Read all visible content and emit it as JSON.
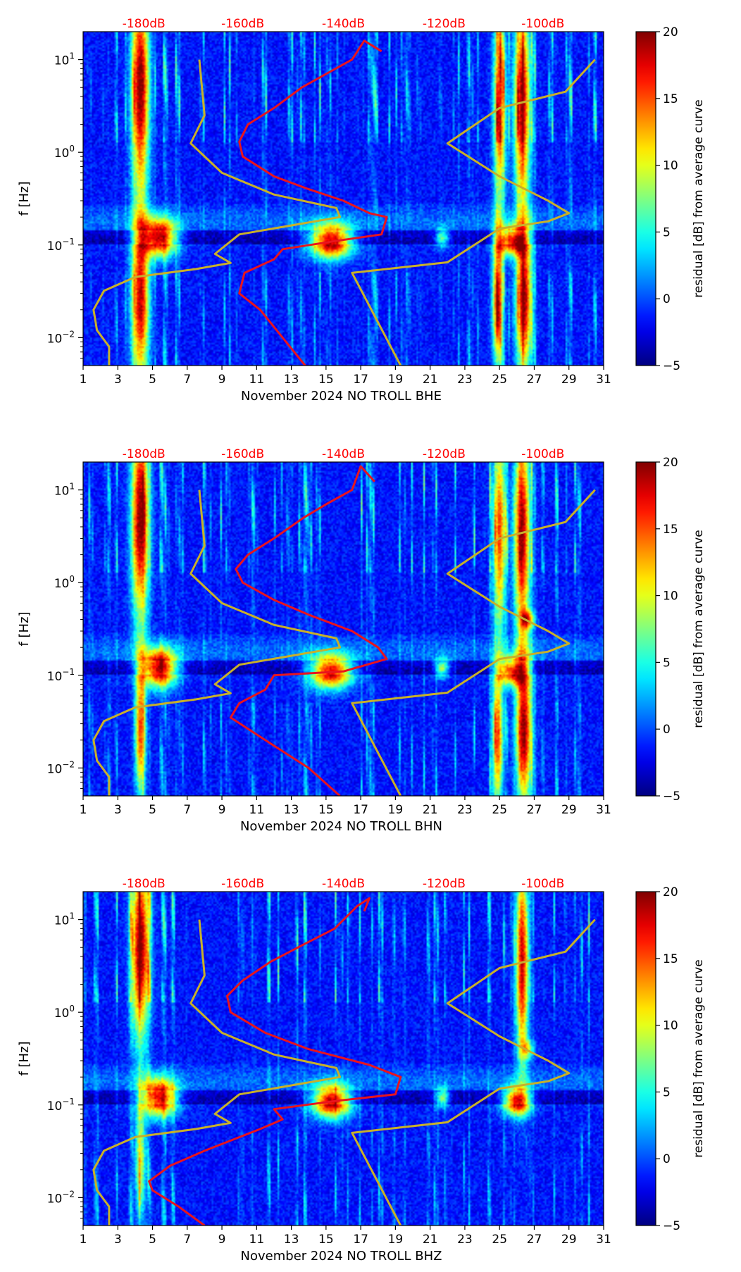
{
  "colors": {
    "db_label": "#ff0000",
    "red_curve": "#e8141e",
    "yellow_curve": "#c8b02a",
    "axis": "#000000"
  },
  "chart_data": [
    {
      "type": "heatmap",
      "title": "",
      "xlabel": "November 2024 NO TROLL  BHE",
      "ylabel": "f [Hz]",
      "x_range": [
        1,
        31
      ],
      "x_ticks": [
        "1",
        "3",
        "5",
        "7",
        "9",
        "11",
        "13",
        "15",
        "17",
        "19",
        "21",
        "23",
        "25",
        "27",
        "29",
        "31"
      ],
      "y_range": [
        0.005,
        20
      ],
      "y_scale": "log",
      "y_ticks": [
        {
          "value": 0.01,
          "base": "10",
          "exp": "−2"
        },
        {
          "value": 0.1,
          "base": "10",
          "exp": "−1"
        },
        {
          "value": 1,
          "base": "10",
          "exp": "0"
        },
        {
          "value": 10,
          "base": "10",
          "exp": "1"
        }
      ],
      "top_labels": [
        "-180dB",
        "-160dB",
        "-140dB",
        "-120dB",
        "-100dB"
      ],
      "colorbar": {
        "label": "residual [dB] from average curve",
        "range": [
          -5,
          20
        ],
        "ticks": [
          "−5",
          "0",
          "5",
          "10",
          "15",
          "20"
        ]
      },
      "red_curve": [
        [
          13.8,
          0.005
        ],
        [
          12.5,
          0.01
        ],
        [
          11.2,
          0.02
        ],
        [
          10,
          0.03
        ],
        [
          10.3,
          0.05
        ],
        [
          12,
          0.07
        ],
        [
          12.5,
          0.09
        ],
        [
          15.5,
          0.11
        ],
        [
          18.2,
          0.13
        ],
        [
          18.5,
          0.2
        ],
        [
          17.5,
          0.22
        ],
        [
          16,
          0.3
        ],
        [
          14,
          0.4
        ],
        [
          12,
          0.55
        ],
        [
          10.2,
          0.9
        ],
        [
          10,
          1.3
        ],
        [
          10.5,
          2
        ],
        [
          12,
          3
        ],
        [
          13.6,
          5
        ],
        [
          15,
          7
        ],
        [
          16.5,
          10
        ],
        [
          17.2,
          16
        ],
        [
          18.2,
          12.3
        ]
      ],
      "yellow_curve": [
        [
          2.5,
          0.005
        ],
        [
          2.5,
          0.008
        ],
        [
          1.8,
          0.012
        ],
        [
          1.6,
          0.02
        ],
        [
          2.2,
          0.032
        ],
        [
          4,
          0.045
        ],
        [
          7.5,
          0.055
        ],
        [
          9.5,
          0.064
        ],
        [
          8.6,
          0.08
        ],
        [
          10,
          0.13
        ],
        [
          15.8,
          0.2
        ],
        [
          15.6,
          0.25
        ],
        [
          12,
          0.35
        ],
        [
          9,
          0.6
        ],
        [
          7.2,
          1.25
        ],
        [
          8,
          2.5
        ],
        [
          7.7,
          10
        ],
        [
          7.7,
          10
        ],
        [
          19.3,
          0.005
        ],
        [
          16.5,
          0.05
        ],
        [
          22,
          0.065
        ],
        [
          25,
          0.15
        ],
        [
          27.8,
          0.18
        ],
        [
          29,
          0.22
        ],
        [
          27.8,
          0.3
        ],
        [
          25,
          0.55
        ],
        [
          22,
          1.25
        ],
        [
          25,
          3
        ],
        [
          28.8,
          4.5
        ],
        [
          30.5,
          10
        ]
      ],
      "hot_spots": [
        {
          "x": 4.3,
          "y": 5,
          "wx": 0.5,
          "wy": 1.1,
          "v": 22
        },
        {
          "x": 4.3,
          "y": 0.025,
          "wx": 0.5,
          "wy": 0.9,
          "v": 20
        },
        {
          "x": 5.4,
          "y": 0.12,
          "wx": 1.0,
          "wy": 0.2,
          "v": 22
        },
        {
          "x": 15.3,
          "y": 0.11,
          "wx": 1.2,
          "wy": 0.18,
          "v": 22
        },
        {
          "x": 25.0,
          "y": 3.5,
          "wx": 0.35,
          "wy": 1.1,
          "v": 17
        },
        {
          "x": 26.3,
          "y": 3.5,
          "wx": 0.45,
          "wy": 1.1,
          "v": 21
        },
        {
          "x": 24.9,
          "y": 0.025,
          "wx": 0.3,
          "wy": 0.7,
          "v": 19
        },
        {
          "x": 26.4,
          "y": 0.025,
          "wx": 0.45,
          "wy": 0.8,
          "v": 21
        },
        {
          "x": 25.7,
          "y": 0.11,
          "wx": 0.8,
          "wy": 0.15,
          "v": 19
        },
        {
          "x": 21.7,
          "y": 0.12,
          "wx": 0.4,
          "wy": 0.1,
          "v": 10
        }
      ]
    },
    {
      "type": "heatmap",
      "title": "",
      "xlabel": "November 2024 NO TROLL  BHN",
      "ylabel": "f [Hz]",
      "x_range": [
        1,
        31
      ],
      "x_ticks": [
        "1",
        "3",
        "5",
        "7",
        "9",
        "11",
        "13",
        "15",
        "17",
        "19",
        "21",
        "23",
        "25",
        "27",
        "29",
        "31"
      ],
      "y_range": [
        0.005,
        20
      ],
      "y_scale": "log",
      "y_ticks": [
        {
          "value": 0.01,
          "base": "10",
          "exp": "−2"
        },
        {
          "value": 0.1,
          "base": "10",
          "exp": "−1"
        },
        {
          "value": 1,
          "base": "10",
          "exp": "0"
        },
        {
          "value": 10,
          "base": "10",
          "exp": "1"
        }
      ],
      "top_labels": [
        "-180dB",
        "-160dB",
        "-140dB",
        "-120dB",
        "-100dB"
      ],
      "colorbar": {
        "label": "residual [dB] from average curve",
        "range": [
          -5,
          20
        ],
        "ticks": [
          "−5",
          "0",
          "5",
          "10",
          "15",
          "20"
        ]
      },
      "red_curve": [
        [
          15.8,
          0.005
        ],
        [
          14,
          0.01
        ],
        [
          11.5,
          0.02
        ],
        [
          9.5,
          0.035
        ],
        [
          10,
          0.05
        ],
        [
          11.5,
          0.07
        ],
        [
          12,
          0.1
        ],
        [
          16,
          0.11
        ],
        [
          18.5,
          0.15
        ],
        [
          18,
          0.2
        ],
        [
          16.5,
          0.3
        ],
        [
          14,
          0.45
        ],
        [
          12,
          0.65
        ],
        [
          10.2,
          1
        ],
        [
          9.8,
          1.4
        ],
        [
          10.5,
          2
        ],
        [
          12,
          3
        ],
        [
          13.7,
          5
        ],
        [
          15,
          7
        ],
        [
          16.5,
          10
        ],
        [
          17,
          18
        ],
        [
          17.8,
          12.3
        ]
      ],
      "yellow_curve": [
        [
          2.5,
          0.005
        ],
        [
          2.5,
          0.008
        ],
        [
          1.8,
          0.012
        ],
        [
          1.6,
          0.02
        ],
        [
          2.2,
          0.032
        ],
        [
          4,
          0.045
        ],
        [
          7.5,
          0.055
        ],
        [
          9.5,
          0.064
        ],
        [
          8.6,
          0.08
        ],
        [
          10,
          0.13
        ],
        [
          15.8,
          0.2
        ],
        [
          15.6,
          0.25
        ],
        [
          12,
          0.35
        ],
        [
          9,
          0.6
        ],
        [
          7.2,
          1.25
        ],
        [
          8,
          2.5
        ],
        [
          7.7,
          10
        ],
        [
          7.7,
          10
        ],
        [
          19.3,
          0.005
        ],
        [
          16.5,
          0.05
        ],
        [
          22,
          0.065
        ],
        [
          25,
          0.15
        ],
        [
          27.8,
          0.18
        ],
        [
          29,
          0.22
        ],
        [
          27.8,
          0.3
        ],
        [
          25,
          0.55
        ],
        [
          22,
          1.25
        ],
        [
          25,
          3
        ],
        [
          28.8,
          4.5
        ],
        [
          30.5,
          10
        ]
      ],
      "hot_spots": [
        {
          "x": 4.3,
          "y": 5,
          "wx": 0.5,
          "wy": 1.1,
          "v": 22
        },
        {
          "x": 4.3,
          "y": 0.025,
          "wx": 0.3,
          "wy": 0.7,
          "v": 17
        },
        {
          "x": 5.4,
          "y": 0.12,
          "wx": 1.0,
          "wy": 0.2,
          "v": 22
        },
        {
          "x": 15.3,
          "y": 0.11,
          "wx": 1.2,
          "wy": 0.18,
          "v": 21
        },
        {
          "x": 25.0,
          "y": 3.5,
          "wx": 0.35,
          "wy": 1.1,
          "v": 17
        },
        {
          "x": 26.3,
          "y": 3.5,
          "wx": 0.45,
          "wy": 1.1,
          "v": 21
        },
        {
          "x": 24.9,
          "y": 0.02,
          "wx": 0.3,
          "wy": 0.7,
          "v": 17
        },
        {
          "x": 26.4,
          "y": 0.025,
          "wx": 0.45,
          "wy": 0.8,
          "v": 21
        },
        {
          "x": 25.7,
          "y": 0.11,
          "wx": 0.8,
          "wy": 0.15,
          "v": 18
        },
        {
          "x": 21.7,
          "y": 0.12,
          "wx": 0.4,
          "wy": 0.1,
          "v": 12
        },
        {
          "x": 26.6,
          "y": 0.4,
          "wx": 0.4,
          "wy": 0.1,
          "v": 13
        }
      ]
    },
    {
      "type": "heatmap",
      "title": "",
      "xlabel": "November 2024 NO TROLL  BHZ",
      "ylabel": "f [Hz]",
      "x_range": [
        1,
        31
      ],
      "x_ticks": [
        "1",
        "3",
        "5",
        "7",
        "9",
        "11",
        "13",
        "15",
        "17",
        "19",
        "21",
        "23",
        "25",
        "27",
        "29",
        "31"
      ],
      "y_range": [
        0.005,
        20
      ],
      "y_scale": "log",
      "y_ticks": [
        {
          "value": 0.01,
          "base": "10",
          "exp": "−2"
        },
        {
          "value": 0.1,
          "base": "10",
          "exp": "−1"
        },
        {
          "value": 1,
          "base": "10",
          "exp": "0"
        },
        {
          "value": 10,
          "base": "10",
          "exp": "1"
        }
      ],
      "top_labels": [
        "-180dB",
        "-160dB",
        "-140dB",
        "-120dB",
        "-100dB"
      ],
      "colorbar": {
        "label": "residual [dB] from average curve",
        "range": [
          -5,
          20
        ],
        "ticks": [
          "−5",
          "0",
          "5",
          "10",
          "15",
          "20"
        ]
      },
      "red_curve": [
        [
          8,
          0.005
        ],
        [
          6.5,
          0.008
        ],
        [
          5,
          0.012
        ],
        [
          4.8,
          0.015
        ],
        [
          6,
          0.022
        ],
        [
          8,
          0.032
        ],
        [
          11.2,
          0.055
        ],
        [
          12.5,
          0.07
        ],
        [
          12,
          0.09
        ],
        [
          15.5,
          0.11
        ],
        [
          19,
          0.13
        ],
        [
          19.3,
          0.2
        ],
        [
          17.5,
          0.27
        ],
        [
          14,
          0.4
        ],
        [
          11.5,
          0.6
        ],
        [
          9.5,
          1
        ],
        [
          9.3,
          1.5
        ],
        [
          10.2,
          2.2
        ],
        [
          11.8,
          3.5
        ],
        [
          13.8,
          5.5
        ],
        [
          15.5,
          8
        ],
        [
          16.8,
          14
        ],
        [
          17.5,
          17
        ],
        [
          17.2,
          12.3
        ]
      ],
      "yellow_curve": [
        [
          2.5,
          0.005
        ],
        [
          2.5,
          0.008
        ],
        [
          1.8,
          0.012
        ],
        [
          1.6,
          0.02
        ],
        [
          2.2,
          0.032
        ],
        [
          4,
          0.045
        ],
        [
          7.5,
          0.055
        ],
        [
          9.5,
          0.064
        ],
        [
          8.6,
          0.08
        ],
        [
          10,
          0.13
        ],
        [
          15.8,
          0.2
        ],
        [
          15.6,
          0.25
        ],
        [
          12,
          0.35
        ],
        [
          9,
          0.6
        ],
        [
          7.2,
          1.25
        ],
        [
          8,
          2.5
        ],
        [
          7.7,
          10
        ],
        [
          7.7,
          10
        ],
        [
          19.3,
          0.005
        ],
        [
          16.5,
          0.05
        ],
        [
          22,
          0.065
        ],
        [
          25,
          0.15
        ],
        [
          27.8,
          0.18
        ],
        [
          29,
          0.22
        ],
        [
          27.8,
          0.3
        ],
        [
          25,
          0.55
        ],
        [
          22,
          1.25
        ],
        [
          25,
          3
        ],
        [
          28.8,
          4.5
        ],
        [
          30.5,
          10
        ]
      ],
      "hot_spots": [
        {
          "x": 4.3,
          "y": 5,
          "wx": 0.5,
          "wy": 1.0,
          "v": 22
        },
        {
          "x": 4.3,
          "y": 0.025,
          "wx": 0.3,
          "wy": 0.6,
          "v": 12
        },
        {
          "x": 5.4,
          "y": 0.12,
          "wx": 1.0,
          "wy": 0.2,
          "v": 21
        },
        {
          "x": 15.3,
          "y": 0.11,
          "wx": 1.1,
          "wy": 0.17,
          "v": 22
        },
        {
          "x": 26.3,
          "y": 3.5,
          "wx": 0.35,
          "wy": 1.1,
          "v": 20
        },
        {
          "x": 26.0,
          "y": 0.11,
          "wx": 0.8,
          "wy": 0.15,
          "v": 20
        },
        {
          "x": 21.7,
          "y": 0.12,
          "wx": 0.4,
          "wy": 0.1,
          "v": 11
        },
        {
          "x": 26.6,
          "y": 0.4,
          "wx": 0.4,
          "wy": 0.1,
          "v": 9
        }
      ]
    }
  ]
}
